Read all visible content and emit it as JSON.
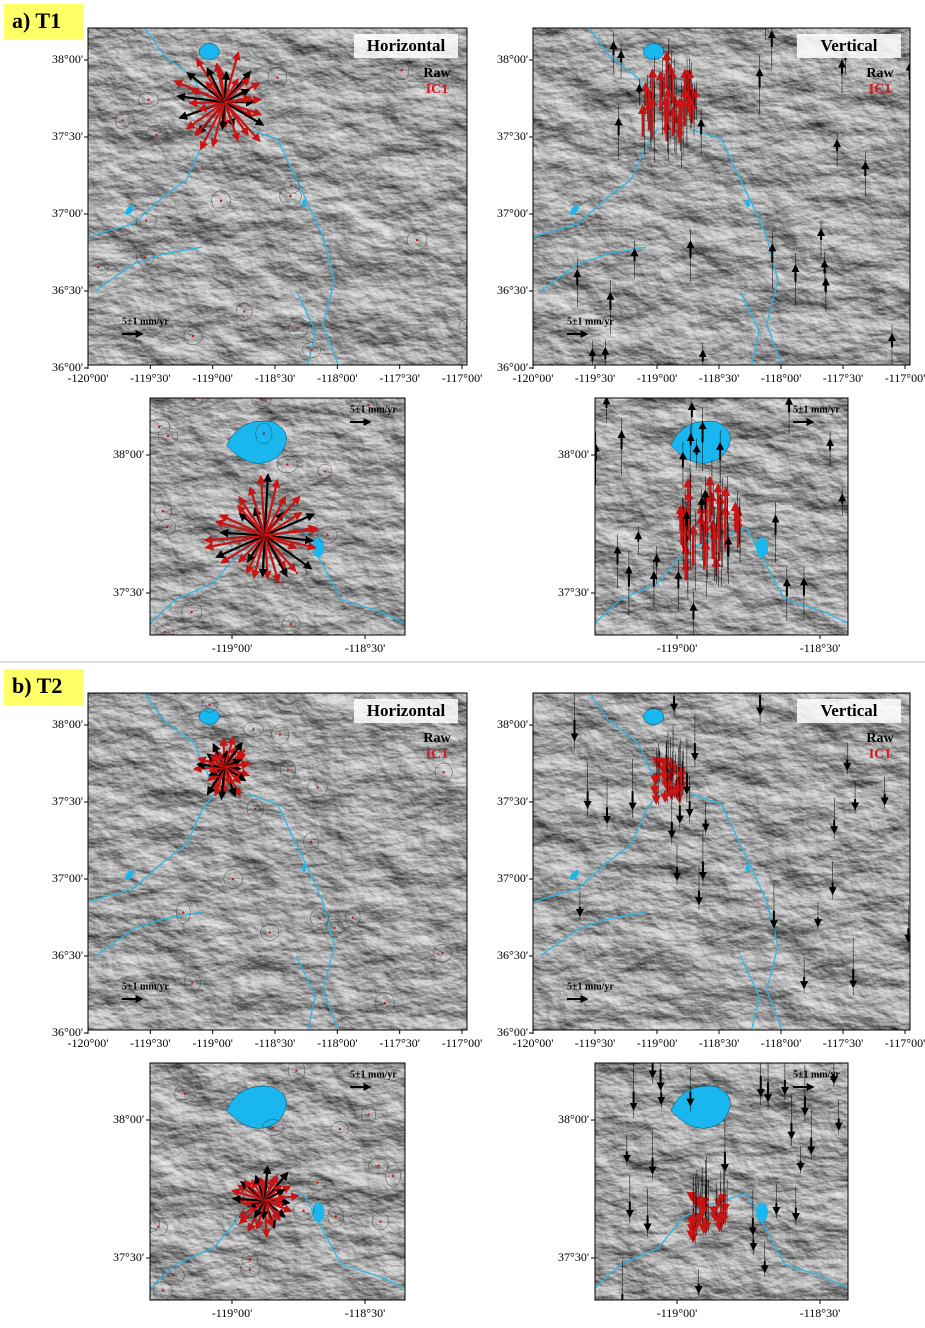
{
  "axes": {
    "main_x": [
      "-120°00'",
      "-119°30'",
      "-119°00'",
      "-118°30'",
      "-118°00'",
      "-117°30'",
      "-117°00'"
    ],
    "main_y": [
      "38°00'",
      "37°30'",
      "37°00'",
      "36°30'",
      "36°00'"
    ],
    "zoom_x": [
      "-119°00'",
      "-118°30'"
    ],
    "zoom_y": [
      "38°00'",
      "37°30'"
    ]
  },
  "panels": [
    {
      "label": "a) T1",
      "maps": [
        {
          "title": "Horizontal",
          "legend": [
            "Raw",
            "IC1"
          ],
          "scale": "5±1 mm/yr"
        },
        {
          "title": "Vertical",
          "legend": [
            "Raw",
            "IC1"
          ],
          "scale": "5±1 mm/yr"
        }
      ],
      "zooms": [
        {
          "scale": "5±1 mm/yr"
        },
        {
          "scale": "5±1 mm/yr"
        }
      ]
    },
    {
      "label": "b) T2",
      "maps": [
        {
          "title": "Horizontal",
          "legend": [
            "Raw",
            "IC1"
          ],
          "scale": "5±1 mm/yr"
        },
        {
          "title": "Vertical",
          "legend": [
            "Raw",
            "IC1"
          ],
          "scale": "5±1 mm/yr"
        }
      ],
      "zooms": [
        {
          "scale": "5±1 mm/yr"
        },
        {
          "scale": "5±1 mm/yr"
        }
      ]
    }
  ]
}
